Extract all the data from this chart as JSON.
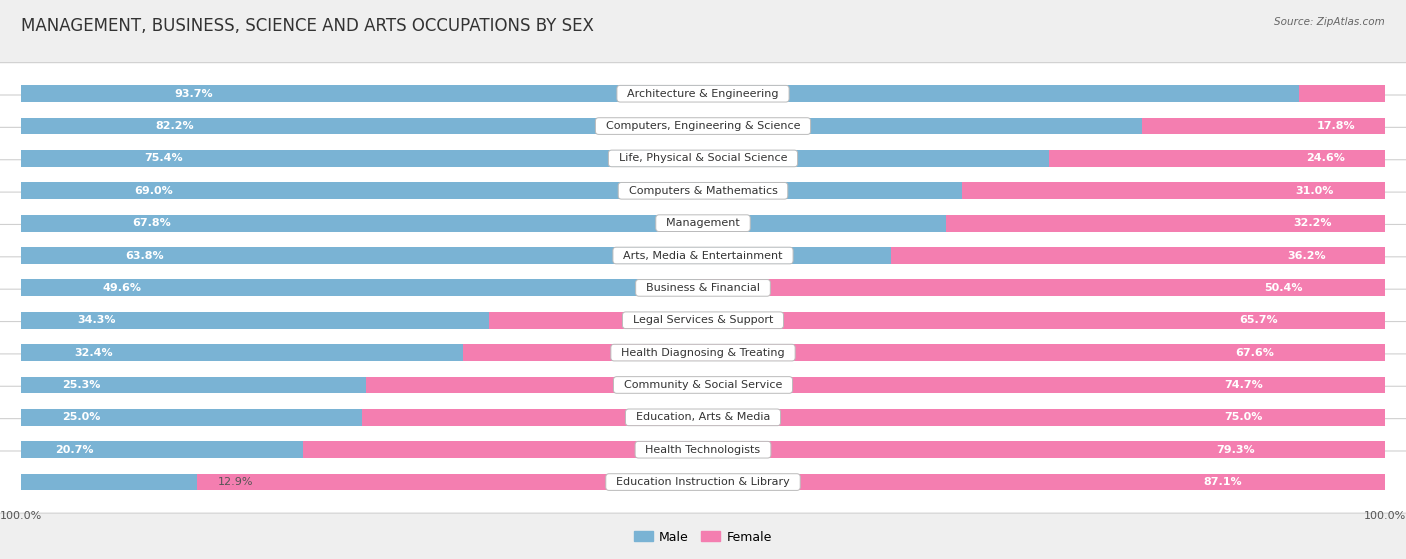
{
  "title": "MANAGEMENT, BUSINESS, SCIENCE AND ARTS OCCUPATIONS BY SEX",
  "source": "Source: ZipAtlas.com",
  "categories": [
    "Architecture & Engineering",
    "Computers, Engineering & Science",
    "Life, Physical & Social Science",
    "Computers & Mathematics",
    "Management",
    "Arts, Media & Entertainment",
    "Business & Financial",
    "Legal Services & Support",
    "Health Diagnosing & Treating",
    "Community & Social Service",
    "Education, Arts & Media",
    "Health Technologists",
    "Education Instruction & Library"
  ],
  "male_pct": [
    93.7,
    82.2,
    75.4,
    69.0,
    67.8,
    63.8,
    49.6,
    34.3,
    32.4,
    25.3,
    25.0,
    20.7,
    12.9
  ],
  "female_pct": [
    6.3,
    17.8,
    24.6,
    31.0,
    32.2,
    36.2,
    50.4,
    65.7,
    67.6,
    74.7,
    75.0,
    79.3,
    87.1
  ],
  "male_color": "#7ab3d4",
  "female_color": "#f47eb0",
  "bg_color": "#efefef",
  "row_bg_color": "#ffffff",
  "bar_height": 0.52,
  "title_fontsize": 12,
  "label_fontsize": 8,
  "cat_fontsize": 8,
  "tick_fontsize": 8,
  "legend_fontsize": 9,
  "male_label_threshold": 15,
  "female_label_threshold": 15
}
